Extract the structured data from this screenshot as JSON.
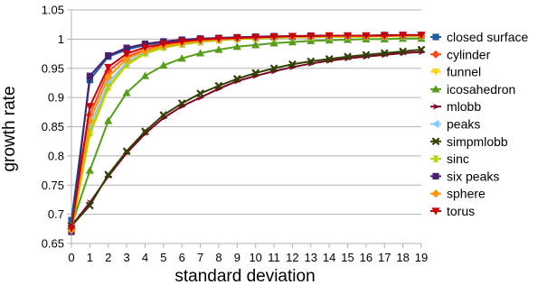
{
  "chart_data": {
    "type": "line",
    "title": "",
    "xlabel": "standard deviation",
    "ylabel": "growth rate",
    "x": [
      0,
      1,
      2,
      3,
      4,
      5,
      6,
      7,
      8,
      9,
      10,
      11,
      12,
      13,
      14,
      15,
      16,
      17,
      18,
      19
    ],
    "xticks": [
      "0",
      "1",
      "2",
      "3",
      "4",
      "5",
      "6",
      "7",
      "8",
      "9",
      "10",
      "11",
      "12",
      "13",
      "14",
      "15",
      "16",
      "17",
      "18",
      "19"
    ],
    "ylim": [
      0.65,
      1.05
    ],
    "yticks": [
      "0.65",
      "0.7",
      "0.75",
      "0.8",
      "0.85",
      "0.9",
      "0.95",
      "1",
      "1.05"
    ],
    "grid": "horizontal",
    "legend_position": "right",
    "series": [
      {
        "name": "closed surface",
        "color": "#1f5a9e",
        "marker": "square",
        "values": [
          0.69,
          0.93,
          0.97,
          0.982,
          0.99,
          0.995,
          0.998,
          1.0,
          1.002,
          1.003,
          1.004,
          1.004,
          1.005,
          1.005,
          1.005,
          1.005,
          1.005,
          1.006,
          1.006,
          1.006
        ]
      },
      {
        "name": "cylinder",
        "color": "#ff4a1a",
        "marker": "diamond",
        "values": [
          0.675,
          0.87,
          0.945,
          0.97,
          0.982,
          0.99,
          0.995,
          0.998,
          1.0,
          1.002,
          1.003,
          1.004,
          1.004,
          1.005,
          1.005,
          1.005,
          1.005,
          1.006,
          1.006,
          1.006
        ]
      },
      {
        "name": "funnel",
        "color": "#ffd320",
        "marker": "triangle-down",
        "values": [
          0.672,
          0.835,
          0.915,
          0.955,
          0.975,
          0.985,
          0.991,
          0.995,
          0.998,
          1.0,
          1.001,
          1.002,
          1.003,
          1.003,
          1.004,
          1.004,
          1.004,
          1.005,
          1.005,
          1.005
        ]
      },
      {
        "name": "icosahedron",
        "color": "#579d1c",
        "marker": "triangle-up",
        "values": [
          0.68,
          0.775,
          0.86,
          0.908,
          0.937,
          0.955,
          0.967,
          0.976,
          0.982,
          0.987,
          0.99,
          0.993,
          0.995,
          0.997,
          0.998,
          0.999,
          1.0,
          1.0,
          1.001,
          1.001
        ]
      },
      {
        "name": "mlobb",
        "color": "#7e0021",
        "marker": "arrow-right",
        "values": [
          0.68,
          0.72,
          0.765,
          0.805,
          0.838,
          0.865,
          0.885,
          0.9,
          0.915,
          0.928,
          0.937,
          0.945,
          0.952,
          0.958,
          0.963,
          0.967,
          0.97,
          0.973,
          0.976,
          0.978
        ]
      },
      {
        "name": "peaks",
        "color": "#83caff",
        "marker": "triangle-left",
        "values": [
          0.674,
          0.85,
          0.925,
          0.96,
          0.978,
          0.987,
          0.992,
          0.996,
          0.999,
          1.001,
          1.002,
          1.003,
          1.003,
          1.004,
          1.004,
          1.005,
          1.005,
          1.005,
          1.005,
          1.005
        ]
      },
      {
        "name": "simpmlobb",
        "color": "#314004",
        "marker": "cross",
        "values": [
          0.68,
          0.715,
          0.768,
          0.808,
          0.842,
          0.87,
          0.89,
          0.907,
          0.92,
          0.932,
          0.942,
          0.95,
          0.957,
          0.962,
          0.966,
          0.97,
          0.973,
          0.976,
          0.979,
          0.982
        ]
      },
      {
        "name": "sinc",
        "color": "#aecf00",
        "marker": "hourglass",
        "values": [
          0.673,
          0.84,
          0.918,
          0.957,
          0.976,
          0.986,
          0.991,
          0.995,
          0.998,
          1.0,
          1.001,
          1.002,
          1.003,
          1.003,
          1.004,
          1.004,
          1.004,
          1.005,
          1.005,
          1.005
        ]
      },
      {
        "name": "six peaks",
        "color": "#4b1f6f",
        "marker": "square",
        "values": [
          0.67,
          0.937,
          0.972,
          0.985,
          0.992,
          0.996,
          0.999,
          1.001,
          1.002,
          1.003,
          1.004,
          1.005,
          1.005,
          1.006,
          1.006,
          1.006,
          1.006,
          1.007,
          1.007,
          1.007
        ]
      },
      {
        "name": "sphere",
        "color": "#ff950e",
        "marker": "diamond",
        "values": [
          0.673,
          0.86,
          0.935,
          0.966,
          0.98,
          0.988,
          0.993,
          0.997,
          0.999,
          1.001,
          1.002,
          1.003,
          1.004,
          1.004,
          1.005,
          1.005,
          1.005,
          1.005,
          1.006,
          1.006
        ]
      },
      {
        "name": "torus",
        "color": "#c5000b",
        "marker": "triangle-down",
        "values": [
          0.676,
          0.885,
          0.952,
          0.975,
          0.986,
          0.992,
          0.996,
          0.999,
          1.001,
          1.002,
          1.003,
          1.004,
          1.005,
          1.005,
          1.006,
          1.006,
          1.006,
          1.006,
          1.007,
          1.007
        ]
      }
    ]
  }
}
